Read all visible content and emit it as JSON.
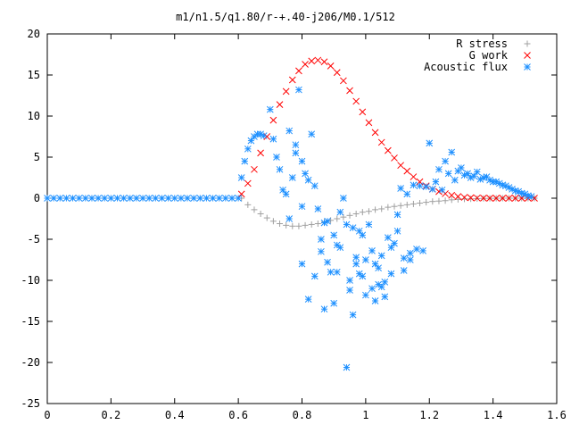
{
  "chart_data": {
    "type": "scatter",
    "title": "m1/n1.5/q1.80/r-+.40-j206/M0.1/512",
    "xlabel": "",
    "ylabel": "",
    "xlim": [
      0,
      1.6
    ],
    "ylim": [
      -25,
      20
    ],
    "xticks": [
      0,
      0.2,
      0.4,
      0.6,
      0.8,
      1,
      1.2,
      1.4,
      1.6
    ],
    "xtick_labels": [
      "0",
      "0.2",
      "0.4",
      "0.6",
      "0.8",
      "1",
      "1.2",
      "1.4",
      "1.6"
    ],
    "yticks": [
      -25,
      -20,
      -15,
      -10,
      -5,
      0,
      5,
      10,
      15,
      20
    ],
    "ytick_labels": [
      "-25",
      "-20",
      "-15",
      "-10",
      "-5",
      "0",
      "5",
      "10",
      "15",
      "20"
    ],
    "grid": false,
    "legend_position": "top-right",
    "series": [
      {
        "name": "R stress",
        "marker": "plus",
        "color": "#a0a0a0",
        "x": [
          0.61,
          0.63,
          0.65,
          0.67,
          0.69,
          0.71,
          0.73,
          0.75,
          0.77,
          0.79,
          0.81,
          0.83,
          0.85,
          0.87,
          0.89,
          0.91,
          0.93,
          0.95,
          0.97,
          0.99,
          1.01,
          1.03,
          1.05,
          1.07,
          1.09,
          1.11,
          1.13,
          1.15,
          1.17,
          1.19,
          1.21,
          1.23,
          1.25,
          1.27,
          1.29,
          1.31,
          1.33,
          1.35,
          1.37,
          1.39,
          1.41,
          1.43,
          1.45,
          1.47,
          1.49,
          1.51,
          1.53
        ],
        "y": [
          0.0,
          -0.8,
          -1.4,
          -1.9,
          -2.4,
          -2.8,
          -3.1,
          -3.3,
          -3.4,
          -3.4,
          -3.3,
          -3.2,
          -3.1,
          -2.9,
          -2.7,
          -2.5,
          -2.3,
          -2.1,
          -1.9,
          -1.7,
          -1.6,
          -1.4,
          -1.3,
          -1.1,
          -1.0,
          -0.9,
          -0.8,
          -0.7,
          -0.6,
          -0.5,
          -0.4,
          -0.35,
          -0.3,
          -0.2,
          -0.15,
          -0.1,
          -0.08,
          -0.05,
          -0.03,
          -0.02,
          -0.01,
          0.0,
          0.0,
          0.0,
          0.0,
          0.0,
          0.0
        ]
      },
      {
        "name": "G work",
        "marker": "cross",
        "color": "#ff0000",
        "x": [
          0.61,
          0.63,
          0.65,
          0.67,
          0.69,
          0.71,
          0.73,
          0.75,
          0.77,
          0.79,
          0.81,
          0.83,
          0.85,
          0.87,
          0.89,
          0.91,
          0.93,
          0.95,
          0.97,
          0.99,
          1.01,
          1.03,
          1.05,
          1.07,
          1.09,
          1.11,
          1.13,
          1.15,
          1.17,
          1.19,
          1.21,
          1.23,
          1.25,
          1.27,
          1.29,
          1.31,
          1.33,
          1.35,
          1.37,
          1.39,
          1.41,
          1.43,
          1.45,
          1.47,
          1.49,
          1.51,
          1.53
        ],
        "y": [
          0.5,
          1.8,
          3.5,
          5.5,
          7.5,
          9.5,
          11.4,
          13.0,
          14.4,
          15.5,
          16.3,
          16.7,
          16.8,
          16.6,
          16.1,
          15.3,
          14.3,
          13.1,
          11.8,
          10.5,
          9.2,
          8.0,
          6.8,
          5.8,
          4.9,
          4.0,
          3.3,
          2.6,
          2.0,
          1.5,
          1.1,
          0.8,
          0.55,
          0.35,
          0.2,
          0.1,
          0.05,
          0.02,
          0.01,
          0.0,
          0.0,
          0.0,
          0.0,
          0.0,
          0.0,
          0.0,
          0.0
        ]
      },
      {
        "name": "Acoustic flux",
        "marker": "star",
        "color": "#1e90ff",
        "x": [
          0.0,
          0.02,
          0.04,
          0.06,
          0.08,
          0.1,
          0.12,
          0.14,
          0.16,
          0.18,
          0.2,
          0.22,
          0.24,
          0.26,
          0.28,
          0.3,
          0.32,
          0.34,
          0.36,
          0.38,
          0.4,
          0.42,
          0.44,
          0.46,
          0.48,
          0.5,
          0.52,
          0.54,
          0.56,
          0.58,
          0.6,
          0.61,
          0.62,
          0.63,
          0.64,
          0.65,
          0.66,
          0.67,
          0.68,
          0.7,
          0.71,
          0.72,
          0.73,
          0.74,
          0.75,
          0.76,
          0.77,
          0.78,
          0.79,
          0.8,
          0.8,
          0.81,
          0.82,
          0.83,
          0.84,
          0.85,
          0.86,
          0.87,
          0.88,
          0.89,
          0.9,
          0.91,
          0.92,
          0.93,
          0.94,
          0.95,
          0.96,
          0.97,
          0.98,
          0.99,
          1.0,
          1.01,
          1.02,
          1.03,
          1.04,
          1.05,
          1.06,
          1.07,
          1.08,
          1.09,
          1.1,
          1.11,
          1.12,
          1.13,
          1.14,
          1.15,
          1.16,
          1.17,
          1.18,
          1.19,
          1.2,
          1.21,
          1.22,
          1.23,
          1.24,
          1.25,
          1.26,
          1.27,
          1.28,
          1.29,
          1.3,
          1.31,
          1.32,
          1.33,
          1.34,
          1.35,
          1.36,
          1.37,
          1.38,
          1.39,
          1.4,
          1.41,
          1.42,
          1.43,
          1.44,
          1.45,
          1.46,
          1.47,
          1.48,
          1.49,
          1.5,
          1.51,
          1.52,
          0.76,
          0.78,
          0.8,
          0.82,
          0.84,
          0.86,
          0.88,
          0.9,
          0.92,
          0.94,
          0.96,
          0.98,
          1.0,
          1.02,
          1.04,
          1.06,
          1.08,
          1.1,
          1.12,
          1.14,
          0.95,
          0.99,
          1.03,
          0.87,
          0.91,
          0.97,
          1.05
        ],
        "y": [
          0,
          0,
          0,
          0,
          0,
          0,
          0,
          0,
          0,
          0,
          0,
          0,
          0,
          0,
          0,
          0,
          0,
          0,
          0,
          0,
          0,
          0,
          0,
          0,
          0,
          0,
          0,
          0,
          0,
          0,
          0,
          2.5,
          4.5,
          6.0,
          7.0,
          7.5,
          7.8,
          7.8,
          7.6,
          10.8,
          7.2,
          5.0,
          3.5,
          1.0,
          0.5,
          8.2,
          2.5,
          6.5,
          13.2,
          -1.0,
          4.5,
          3.0,
          2.2,
          7.8,
          1.5,
          -1.3,
          -6.5,
          -3.0,
          -2.8,
          -9.0,
          -4.5,
          -5.7,
          -1.7,
          0.0,
          -20.6,
          -11.2,
          -3.6,
          -7.2,
          -4.0,
          -9.5,
          -11.8,
          -3.2,
          -6.4,
          -8.0,
          -10.5,
          -7.0,
          -12.0,
          -4.8,
          -9.2,
          -5.5,
          -2.0,
          1.2,
          -7.3,
          0.5,
          -6.7,
          1.6,
          -6.2,
          1.5,
          -6.4,
          1.4,
          6.7,
          1.1,
          2.0,
          3.5,
          1.0,
          4.5,
          3.0,
          5.6,
          2.2,
          3.3,
          3.7,
          2.8,
          3.0,
          2.5,
          2.7,
          3.2,
          2.3,
          2.5,
          2.6,
          2.2,
          2.0,
          2.0,
          1.8,
          1.6,
          1.5,
          1.3,
          1.1,
          0.9,
          0.8,
          0.6,
          0.5,
          0.3,
          0.2,
          -2.5,
          5.5,
          -8.0,
          -12.3,
          -9.5,
          -5.0,
          -7.8,
          -12.8,
          -6.0,
          -3.2,
          -14.2,
          -9.2,
          -7.5,
          -11.0,
          -8.5,
          -10.2,
          -6.0,
          -4.0,
          -8.8,
          -7.5,
          -10.0,
          -4.5,
          -12.5,
          -13.5,
          -9.0,
          -8.0,
          -10.8
        ]
      }
    ]
  }
}
